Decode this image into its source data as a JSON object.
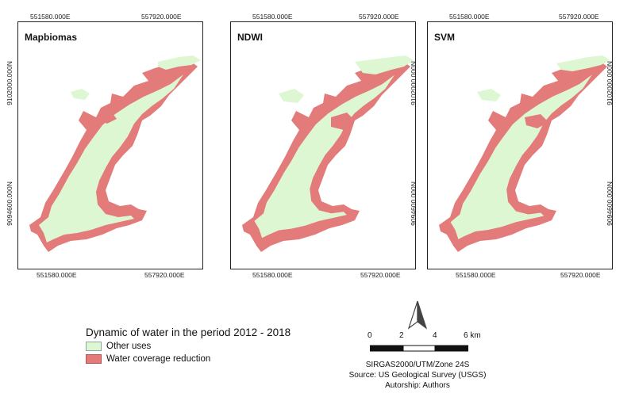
{
  "colors": {
    "other_uses": "#ddf7d2",
    "water_reduction": "#e37b7b",
    "frame": "#222222"
  },
  "panels": [
    {
      "title": "Mapbiomas",
      "x_top_left": "551580.000E",
      "x_top_right": "557920.000E",
      "x_bottom_left": "551580.000E",
      "x_bottom_right": "557920.000E",
      "y_upper": "9102000.000N",
      "y_lower": "9094600.000N"
    },
    {
      "title": "NDWI",
      "x_top_left": "551580.000E",
      "x_top_right": "557920.000E",
      "x_bottom_left": "551580.000E",
      "x_bottom_right": "557920.000E",
      "y_upper": "9102000.000N",
      "y_lower": "9094600.000N"
    },
    {
      "title": "SVM",
      "x_top_left": "551580.000E",
      "x_top_right": "557920.000E",
      "x_bottom_left": "551580.000E",
      "x_bottom_right": "557920.000E",
      "y_upper": "9102000.000N",
      "y_lower": "9094600.000N"
    }
  ],
  "legend": {
    "title": "Dynamic of water in the period 2012 - 2018",
    "items": [
      {
        "label": "Other uses",
        "color": "#ddf7d2"
      },
      {
        "label": "Water coverage reduction",
        "color": "#e37b7b"
      }
    ]
  },
  "scale_bar": {
    "labels": [
      "0",
      "2",
      "4",
      "6 km"
    ]
  },
  "north_arrow_icon": "north-arrow-icon",
  "credits": {
    "projection": "SIRGAS2000/UTM/Zone 24S",
    "source": "Source: US Geological Survey (USGS)",
    "authorship": "Autorship: Authors"
  }
}
